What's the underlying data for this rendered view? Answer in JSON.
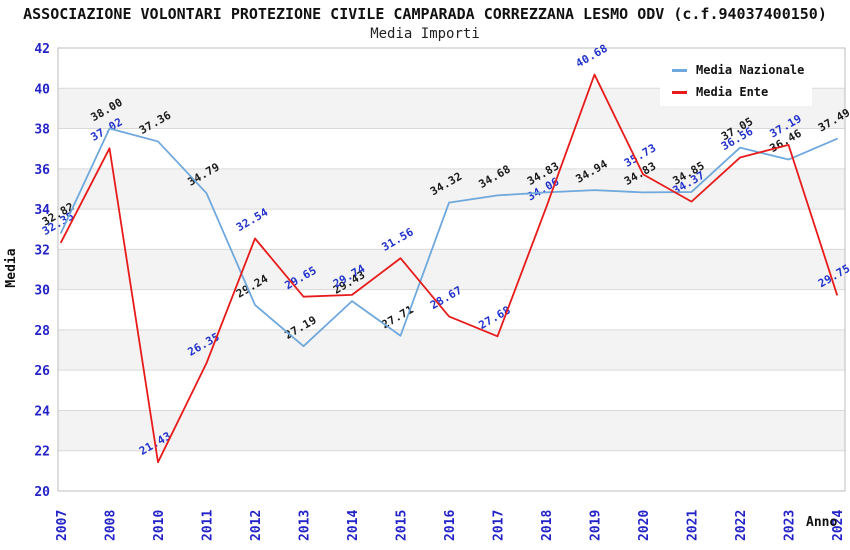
{
  "header": {
    "title": "ASSOCIAZIONE VOLONTARI PROTEZIONE CIVILE CAMPARADA CORREZZANA LESMO ODV (c.f.94037400150)",
    "subtitle": "Media Importi"
  },
  "chart_data": {
    "type": "line",
    "title": "Media Importi",
    "xlabel": "Anno",
    "ylabel": "Media",
    "categories": [
      "2007",
      "2008",
      "2010",
      "2011",
      "2012",
      "2013",
      "2014",
      "2015",
      "2016",
      "2017",
      "2018",
      "2019",
      "2020",
      "2021",
      "2022",
      "2023",
      "2024"
    ],
    "series": [
      {
        "name": "Media Nazionale",
        "color": "#6fa8dc",
        "label_color": "#1a1a1a",
        "values": [
          32.82,
          38.0,
          37.36,
          34.79,
          29.24,
          27.19,
          29.43,
          27.71,
          34.32,
          34.68,
          34.83,
          34.94,
          34.83,
          34.85,
          37.05,
          36.46,
          37.49
        ]
      },
      {
        "name": "Media Ente",
        "color": "#e81b1b",
        "label_color": "#2233cc",
        "values": [
          32.35,
          37.02,
          21.43,
          26.35,
          32.54,
          29.65,
          29.74,
          31.56,
          28.67,
          27.68,
          34.06,
          40.68,
          35.73,
          34.37,
          36.56,
          37.19,
          29.75
        ]
      }
    ],
    "ylim": [
      20,
      42
    ],
    "y_tick_step": 2,
    "y_ticks": [
      20,
      22,
      24,
      26,
      28,
      30,
      32,
      34,
      36,
      38,
      40,
      42
    ],
    "grid": "horizontal",
    "legend_position": "top-right",
    "colors": {
      "axis_text": "#2323c8",
      "band_fill": "#f3f3f3",
      "gridline": "#d9d9d9",
      "plot_border": "#bdbdbd",
      "background": "#ffffff"
    }
  },
  "legend": {
    "items": [
      {
        "label": "Media Nazionale",
        "color": "#6fa8dc"
      },
      {
        "label": "Media Ente",
        "color": "#e81b1b"
      }
    ]
  }
}
